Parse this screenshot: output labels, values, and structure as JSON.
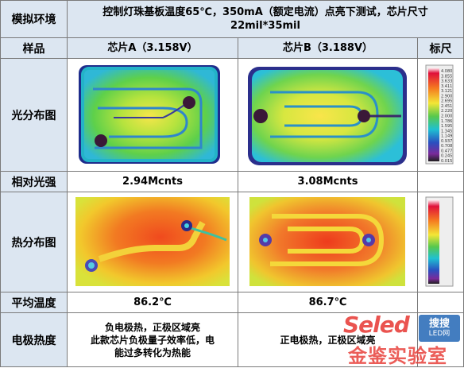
{
  "header": {
    "corner_label": "模拟环境",
    "condition_line1": "控制灯珠基板温度65℃，350mA（额定电流）点亮下测试，芯片尺寸",
    "condition_line2": "22mil*35mil"
  },
  "columns": {
    "row_label": "样品",
    "chip_a": "芯片A（3.158V）",
    "chip_b": "芯片B（3.188V）",
    "scale": "标尺"
  },
  "rows": {
    "light_map": "光分布图",
    "relative_intensity": "相对光强",
    "heat_map": "热分布图",
    "avg_temp": "平均温度",
    "electrode_heat": "电极热度"
  },
  "values": {
    "intensity_a": "2.94Mcnts",
    "intensity_b": "3.08Mcnts",
    "temp_a": "86.2℃",
    "temp_b": "86.7℃",
    "electrode_a_line1": "负电极热，正极区域亮",
    "electrode_a_line2": "此款芯片负极量子效率低，电",
    "electrode_a_line3": "能过多转化为热能",
    "electrode_b": "正电极热，正极区域亮"
  },
  "scale_labels": [
    "4.080",
    "3.855",
    "3.633",
    "3.411",
    "3.121",
    "2.900",
    "2.695",
    "2.451",
    "2.220",
    "2.000",
    "1.786",
    "1.595",
    "1.345",
    "1.149",
    "0.937",
    "0.708",
    "0.477",
    "0.245",
    "0.015"
  ],
  "watermark": {
    "brand_latin": "Seled",
    "brand_cn": "搜搜",
    "brand_sub": "LED网",
    "lab": "金鉴实验室"
  },
  "colors": {
    "header_bg": "#dce6f1",
    "border": "#7a7a7a",
    "watermark_red": "#e8413c",
    "watermark_blue": "#2f6fba"
  }
}
